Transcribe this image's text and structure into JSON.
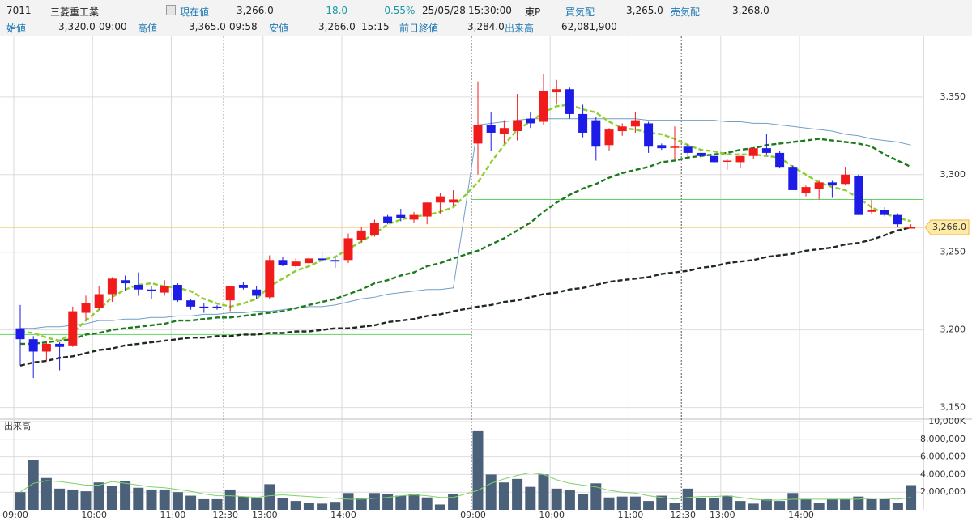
{
  "header": {
    "code": "7011",
    "name": "三菱重工業",
    "current": {
      "label": "現在値",
      "value": "3,266.0",
      "change": "-18.0",
      "change_pct": "-0.55%",
      "date": "25/05/28",
      "time": "15:30:00",
      "market": "東P"
    },
    "bid": {
      "label": "買気配",
      "value": "3,265.0"
    },
    "ask": {
      "label": "売気配",
      "value": "3,268.0"
    },
    "open": {
      "label": "始値",
      "value": "3,320.0",
      "time": "09:00"
    },
    "high": {
      "label": "高値",
      "value": "3,365.0",
      "time": "09:58"
    },
    "low": {
      "label": "安値",
      "value": "3,266.0",
      "time": "15:15"
    },
    "prev_close": {
      "label": "前日終値",
      "value": "3,284.0"
    },
    "volume": {
      "label": "出来高",
      "value": "62,081,900"
    }
  },
  "chart_data": [
    {
      "type": "candlestick",
      "categories": [
        "09:00",
        null,
        null,
        null,
        null,
        null,
        "10:00",
        null,
        null,
        null,
        null,
        null,
        "11:00",
        null,
        null,
        null,
        "12:30",
        null,
        null,
        "13:00",
        null,
        null,
        null,
        null,
        null,
        "14:00",
        null,
        null,
        null,
        null,
        null,
        null,
        null,
        null,
        "09:00",
        null,
        null,
        null,
        null,
        null,
        "10:00",
        null,
        null,
        null,
        null,
        null,
        "11:00",
        null,
        null,
        null,
        "12:30",
        null,
        null,
        "13:00",
        null,
        null,
        null,
        null,
        null,
        "14:00",
        null,
        null,
        null,
        null,
        null,
        null,
        null,
        null
      ],
      "open": [
        3201,
        3194,
        3186,
        3191,
        3190,
        3211,
        3214,
        3223,
        3232,
        3229,
        3226,
        3224,
        3229,
        3219,
        3215,
        3215,
        3219,
        3229,
        3226,
        3221,
        3245,
        3241,
        3243,
        3246,
        3245,
        3245,
        3258,
        3261,
        3273,
        3274,
        3271,
        3273,
        3282,
        3282,
        3320,
        3332,
        3326,
        3328,
        3336,
        3334,
        3353,
        3355,
        3339,
        3335,
        3319,
        3328,
        3331,
        3333,
        3319,
        3318,
        3318,
        3314,
        3312,
        3309,
        3308,
        3312,
        3317,
        3314,
        3305,
        3288,
        3291,
        3295,
        3294,
        3299,
        3276,
        3277,
        3274,
        3266
      ],
      "high": [
        3216,
        3196,
        3193,
        3192,
        3215,
        3222,
        3228,
        3234,
        3235,
        3237,
        3228,
        3232,
        3230,
        3220,
        3217,
        3216,
        3228,
        3231,
        3228,
        3248,
        3247,
        3246,
        3248,
        3250,
        3247,
        3262,
        3266,
        3271,
        3274,
        3278,
        3276,
        3282,
        3288,
        3290,
        3360,
        3340,
        3335,
        3352,
        3340,
        3365,
        3361,
        3356,
        3345,
        3337,
        3330,
        3333,
        3340,
        3334,
        3320,
        3331,
        3320,
        3316,
        3313,
        3310,
        3312,
        3317,
        3326,
        3315,
        3306,
        3293,
        3296,
        3296,
        3305,
        3300,
        3284,
        3279,
        3275,
        3268
      ],
      "low": [
        3177,
        3169,
        3180,
        3174,
        3189,
        3206,
        3213,
        3218,
        3225,
        3222,
        3220,
        3222,
        3218,
        3213,
        3211,
        3213,
        3212,
        3226,
        3220,
        3220,
        3241,
        3240,
        3242,
        3244,
        3240,
        3243,
        3256,
        3260,
        3268,
        3270,
        3269,
        3268,
        3275,
        3280,
        3300,
        3315,
        3320,
        3322,
        3330,
        3332,
        3345,
        3336,
        3324,
        3309,
        3315,
        3325,
        3327,
        3314,
        3316,
        3310,
        3312,
        3310,
        3307,
        3303,
        3304,
        3310,
        3313,
        3304,
        3290,
        3286,
        3284,
        3285,
        3293,
        3274,
        3275,
        3273,
        3266,
        3266
      ],
      "close": [
        3194,
        3186,
        3191,
        3189,
        3212,
        3217,
        3223,
        3233,
        3230,
        3226,
        3225,
        3228,
        3219,
        3215,
        3214,
        3214,
        3228,
        3227,
        3222,
        3245,
        3242,
        3244,
        3246,
        3245,
        3244,
        3259,
        3264,
        3269,
        3269,
        3272,
        3274,
        3282,
        3286,
        3284,
        3332,
        3327,
        3330,
        3335,
        3333,
        3354,
        3355,
        3339,
        3327,
        3318,
        3329,
        3331,
        3335,
        3318,
        3317,
        3318,
        3314,
        3312,
        3308,
        3309,
        3312,
        3317,
        3314,
        3305,
        3290,
        3292,
        3295,
        3293,
        3300,
        3274,
        3277,
        3274,
        3268,
        3266
      ],
      "up_color": "#f01c1c",
      "down_color": "#1c1ce6",
      "lines": [
        {
          "color": "#6f9fc6",
          "style": "solid",
          "values": [
            3201,
            3201,
            3202,
            3202,
            3203,
            3204,
            3206,
            3206,
            3207,
            3207,
            3208,
            3208,
            3209,
            3209,
            3210,
            3210,
            3211,
            3211,
            3212,
            3212,
            3213,
            3214,
            3215,
            3215,
            3216,
            3218,
            3220,
            3221,
            3223,
            3224,
            3225,
            3226,
            3226,
            3227,
            3332,
            3333,
            3334,
            3335,
            3336,
            3336,
            3336,
            3336,
            3336,
            3336,
            3336,
            3336,
            3336,
            3335,
            3335,
            3335,
            3335,
            3335,
            3335,
            3334,
            3334,
            3333,
            3333,
            3332,
            3331,
            3330,
            3329,
            3328,
            3326,
            3325,
            3323,
            3322,
            3321,
            3319
          ]
        },
        {
          "color": "#1e2a1e",
          "style": "dashed",
          "values": [
            3177,
            3179,
            3180,
            3182,
            3183,
            3185,
            3187,
            3188,
            3190,
            3191,
            3192,
            3193,
            3194,
            3195,
            3195,
            3196,
            3196,
            3197,
            3197,
            3198,
            3198,
            3199,
            3199,
            3200,
            3201,
            3201,
            3202,
            3203,
            3205,
            3206,
            3207,
            3209,
            3210,
            3212,
            3215,
            3216,
            3218,
            3219,
            3221,
            3223,
            3224,
            3226,
            3227,
            3229,
            3231,
            3232,
            3233,
            3234,
            3236,
            3237,
            3238,
            3240,
            3241,
            3243,
            3244,
            3245,
            3247,
            3248,
            3249,
            3251,
            3252,
            3253,
            3255,
            3256,
            3258,
            3261,
            3264,
            3266
          ]
        },
        {
          "color": "#1b7a1b",
          "style": "dashed",
          "values": [
            3191,
            3191,
            3192,
            3193,
            3194,
            3197,
            3198,
            3200,
            3201,
            3202,
            3203,
            3204,
            3206,
            3206,
            3207,
            3208,
            3208,
            3209,
            3210,
            3211,
            3212,
            3214,
            3216,
            3218,
            3220,
            3223,
            3226,
            3230,
            3232,
            3235,
            3237,
            3241,
            3243,
            3246,
            3251,
            3255,
            3259,
            3264,
            3269,
            3276,
            3282,
            3287,
            3291,
            3294,
            3298,
            3301,
            3303,
            3305,
            3308,
            3309,
            3311,
            3312,
            3313,
            3314,
            3316,
            3317,
            3319,
            3320,
            3321,
            3322,
            3323,
            3322,
            3321,
            3320,
            3318,
            3313,
            3309,
            3305
          ]
        },
        {
          "color": "#8ccf2c",
          "style": "dashed",
          "values": [
            3199,
            3198,
            3195,
            3193,
            3198,
            3206,
            3213,
            3221,
            3226,
            3229,
            3230,
            3228,
            3227,
            3225,
            3220,
            3217,
            3215,
            3217,
            3220,
            3228,
            3233,
            3238,
            3241,
            3245,
            3247,
            3252,
            3257,
            3262,
            3268,
            3271,
            3273,
            3274,
            3276,
            3279,
            3295,
            3308,
            3319,
            3329,
            3334,
            3340,
            3344,
            3345,
            3342,
            3340,
            3334,
            3330,
            3329,
            3327,
            3326,
            3323,
            3319,
            3316,
            3315,
            3313,
            3313,
            3313,
            3312,
            3311,
            3305,
            3300,
            3295,
            3292,
            3290,
            3285,
            3279,
            3275,
            3272,
            3270
          ]
        }
      ],
      "prev_close_lines": [
        3197,
        3284
      ],
      "prev_close_color": "#5fd65f",
      "current_price": {
        "value": 3266,
        "label": "3,266.0"
      },
      "current_price_color": "#f2b640",
      "ylim": [
        3143,
        3389
      ],
      "yticks": [
        {
          "value": 3150,
          "label": "3,150"
        },
        {
          "value": 3200,
          "label": "3,200"
        },
        {
          "value": 3250,
          "label": "3,250"
        },
        {
          "value": 3300,
          "label": "3,300"
        },
        {
          "value": 3350,
          "label": "3,350"
        }
      ],
      "grid": true
    },
    {
      "type": "bar",
      "title": "出来高",
      "color": "#4b6079",
      "values": [
        2000000,
        5600000,
        3600000,
        2400000,
        2300000,
        2100000,
        3100000,
        2700000,
        3300000,
        2500000,
        2300000,
        2300000,
        2000000,
        1600000,
        1200000,
        1200000,
        2300000,
        1500000,
        1300000,
        2900000,
        1300000,
        1000000,
        800000,
        700000,
        900000,
        1900000,
        1300000,
        1900000,
        1800000,
        1600000,
        1800000,
        1400000,
        600000,
        1800000,
        9000000,
        4000000,
        3100000,
        3500000,
        2600000,
        4000000,
        2400000,
        2200000,
        1800000,
        3000000,
        1400000,
        1500000,
        1500000,
        1000000,
        1600000,
        800000,
        2400000,
        1300000,
        1300000,
        1600000,
        1000000,
        700000,
        1200000,
        1000000,
        1900000,
        1200000,
        800000,
        1200000,
        1200000,
        1500000,
        1200000,
        1200000,
        800000,
        2800000
      ],
      "lines": [
        {
          "color": "#7fd36b",
          "values": [
            2000000,
            3000000,
            3300000,
            3200000,
            3000000,
            2800000,
            2800000,
            3200000,
            3000000,
            2800000,
            2600000,
            2500000,
            2300000,
            2100000,
            1800000,
            1600000,
            1600000,
            1500000,
            1400000,
            1600000,
            1700000,
            1600000,
            1500000,
            1400000,
            1300000,
            1200000,
            1200000,
            1300000,
            1400000,
            1600000,
            1700000,
            1600000,
            1400000,
            1400000,
            2200000,
            3000000,
            3500000,
            3900000,
            4200000,
            4000000,
            3400000,
            3000000,
            2800000,
            2600000,
            2200000,
            2000000,
            1900000,
            1600000,
            1400000,
            1200000,
            1400000,
            1500000,
            1500000,
            1600000,
            1400000,
            1200000,
            1100000,
            1100000,
            1200000,
            1200000,
            1200000,
            1200000,
            1200000,
            1200000,
            1300000,
            1300000,
            1200000,
            1400000
          ]
        }
      ],
      "ylim": [
        0,
        10000000
      ],
      "yticks": [
        {
          "value": 2000000,
          "label": "2,000,000"
        },
        {
          "value": 4000000,
          "label": "4,000,000"
        },
        {
          "value": 6000000,
          "label": "6,000,000"
        },
        {
          "value": 8000000,
          "label": "8,000,000"
        },
        {
          "value": 10000000,
          "label": "10,000K"
        }
      ],
      "grid": true
    }
  ]
}
